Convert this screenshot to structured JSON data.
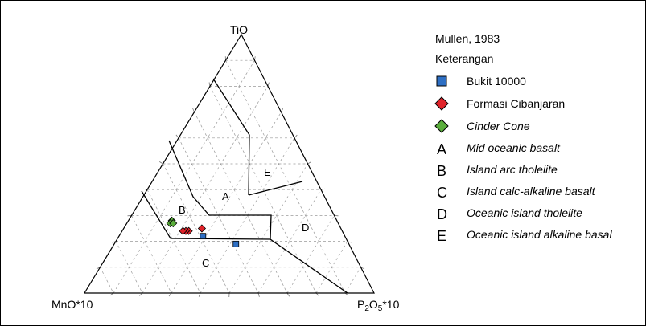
{
  "vertices": {
    "top": "TiO",
    "left": "MnO*10",
    "right_main": "P",
    "right_sub1": "2",
    "right_mid": "O",
    "right_sub2": "5",
    "right_end": "*10"
  },
  "fields": {
    "A": "A",
    "B": "B",
    "C": "C",
    "D": "D",
    "E": "E"
  },
  "legend": {
    "citation": "Mullen, 1983",
    "heading": "Keterangan",
    "series": [
      {
        "label": "Bukit 10000",
        "marker": "square",
        "color": "#2e6fc4",
        "italic": false
      },
      {
        "label": "Formasi Cibanjaran",
        "marker": "diamond",
        "color": "#e0232a",
        "italic": false
      },
      {
        "label": "Cinder Cone",
        "marker": "diamond",
        "color": "#5aae3c",
        "italic": true
      }
    ],
    "fields": [
      {
        "letter": "A",
        "label": "Mid oceanic basalt"
      },
      {
        "letter": "B",
        "label": "Island arc tholeiite"
      },
      {
        "letter": "C",
        "label": "Island calc-alkaline basalt"
      },
      {
        "letter": "D",
        "label": "Oceanic island tholeiite"
      },
      {
        "letter": "E",
        "label": "Oceanic island alkaline basal"
      }
    ]
  },
  "samples": {
    "bukit": [
      {
        "mno": 0.49,
        "tio": 0.22,
        "p2o5": 0.29
      },
      {
        "mno": 0.39,
        "tio": 0.19,
        "p2o5": 0.42
      }
    ],
    "cibanjaran": [
      {
        "mno": 0.53,
        "tio": 0.24,
        "p2o5": 0.23
      },
      {
        "mno": 0.54,
        "tio": 0.24,
        "p2o5": 0.22
      },
      {
        "mno": 0.55,
        "tio": 0.24,
        "p2o5": 0.21
      },
      {
        "mno": 0.48,
        "tio": 0.25,
        "p2o5": 0.27
      }
    ],
    "cinder": [
      {
        "mno": 0.57,
        "tio": 0.28,
        "p2o5": 0.15
      },
      {
        "mno": 0.58,
        "tio": 0.27,
        "p2o5": 0.15
      },
      {
        "mno": 0.57,
        "tio": 0.27,
        "p2o5": 0.16
      }
    ]
  }
}
